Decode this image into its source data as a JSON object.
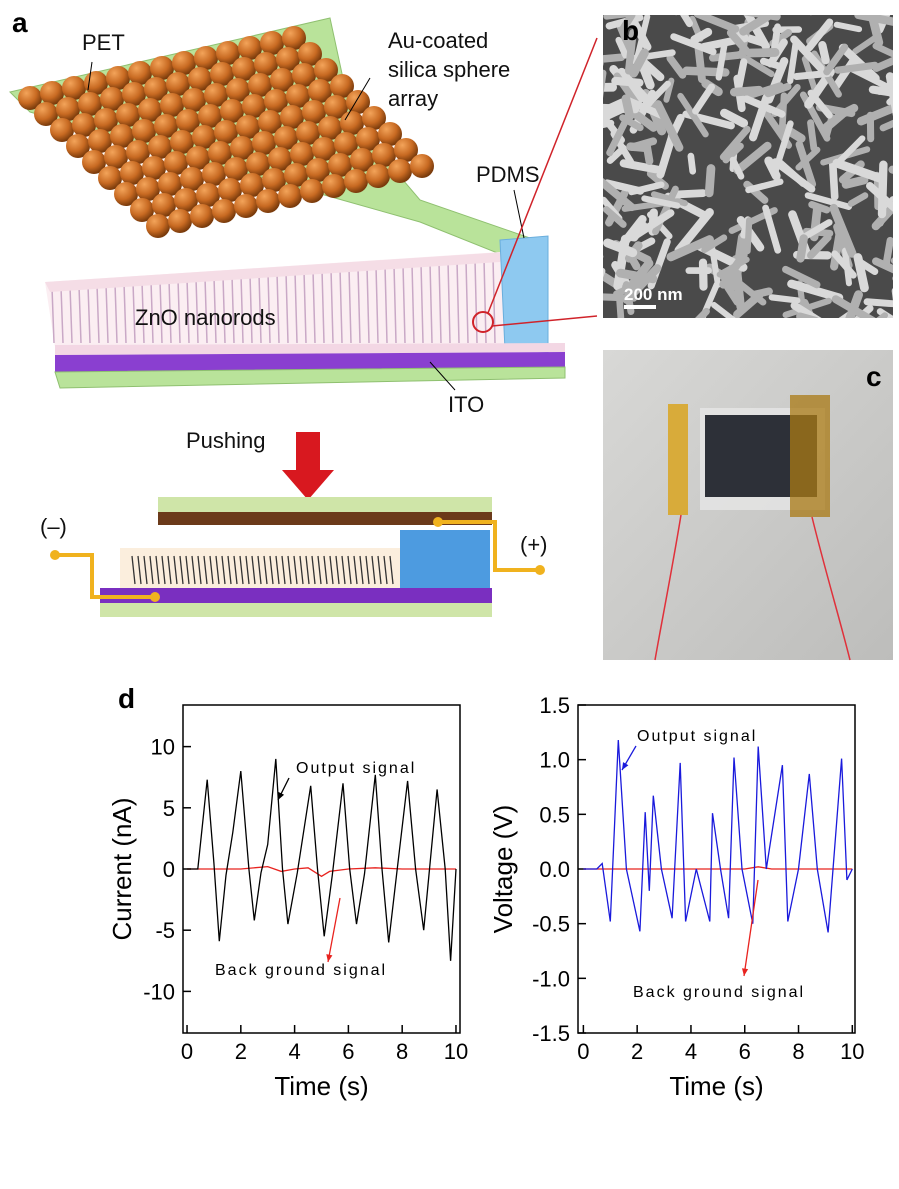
{
  "panel_a": {
    "label": "a",
    "pet": "PET",
    "spheres": [
      "Au-coated",
      "silica sphere",
      "array"
    ],
    "pdms": "PDMS",
    "nanorods": "ZnO nanorods",
    "ito": "ITO",
    "pushing": "Pushing",
    "minus": "(–)",
    "plus": "(+)"
  },
  "panel_b": {
    "label": "b",
    "scale_bar": "200 nm"
  },
  "panel_c": {
    "label": "c"
  },
  "panel_d": {
    "label": "d"
  },
  "chart_data": [
    {
      "type": "line",
      "xlabel": "Time (s)",
      "ylabel": "Current (nA)",
      "xlim": [
        -0.15,
        10.15
      ],
      "ylim": [
        -13.4,
        13.4
      ],
      "xticks": [
        0,
        2,
        4,
        6,
        8,
        10
      ],
      "yticks": [
        -10,
        -5,
        0,
        5,
        10
      ],
      "series": [
        {
          "name": "Output signal",
          "color": "#000000",
          "x": [
            0,
            0.4,
            0.75,
            1.0,
            1.2,
            1.45,
            1.7,
            2.0,
            2.3,
            2.5,
            2.75,
            3.0,
            3.3,
            3.55,
            3.75,
            4.1,
            4.6,
            4.85,
            5.1,
            5.4,
            5.8,
            6.05,
            6.3,
            6.6,
            7.0,
            7.25,
            7.5,
            7.8,
            8.2,
            8.5,
            8.8,
            9.3,
            9.6,
            9.8,
            10
          ],
          "values": [
            0,
            0,
            7.3,
            0.5,
            -5.9,
            -0.5,
            3,
            8.0,
            0,
            -4.2,
            -0.3,
            2,
            9.0,
            0,
            -4.5,
            -0.3,
            6.8,
            0,
            -5.5,
            -0.5,
            7.0,
            0,
            -4.5,
            -0.4,
            7.7,
            0,
            -6.0,
            -0.3,
            7.2,
            0,
            -5.0,
            6.5,
            0,
            -7.5,
            0
          ]
        },
        {
          "name": "Back ground signal",
          "color": "#e8231f",
          "x": [
            0,
            1,
            2,
            3,
            3.5,
            4,
            4.5,
            5,
            5.3,
            6,
            7,
            8,
            9,
            10
          ],
          "values": [
            0,
            0,
            0,
            0.2,
            -0.2,
            0,
            0.1,
            -0.6,
            -0.2,
            0,
            0.1,
            0,
            0,
            0
          ]
        }
      ]
    },
    {
      "type": "line",
      "xlabel": "Time (s)",
      "ylabel": "Voltage (V)",
      "xlim": [
        -0.2,
        10.1
      ],
      "ylim": [
        -1.5,
        1.5
      ],
      "xticks": [
        0,
        2,
        4,
        6,
        8,
        10
      ],
      "yticks": [
        -1.5,
        {
          "value": -1,
          "label": "-1.0"
        },
        -0.5,
        {
          "value": 0,
          "label": "0.0"
        },
        0.5,
        {
          "value": 1,
          "label": "1.0"
        },
        1.5
      ],
      "series": [
        {
          "name": "Output signal",
          "color": "#1a1adc",
          "x": [
            0,
            0.5,
            0.7,
            1.0,
            1.3,
            1.6,
            2.1,
            2.3,
            2.45,
            2.6,
            2.9,
            3.3,
            3.6,
            3.8,
            4.2,
            4.7,
            4.8,
            5.1,
            5.4,
            5.6,
            5.9,
            6.3,
            6.5,
            6.8,
            7.4,
            7.6,
            8.0,
            8.4,
            8.7,
            9.1,
            9.6,
            9.8,
            10
          ],
          "values": [
            0,
            0,
            0.05,
            -0.48,
            1.18,
            0,
            -0.57,
            0.52,
            -0.2,
            0.67,
            0,
            -0.45,
            0.97,
            -0.48,
            0,
            -0.48,
            0.51,
            0,
            -0.45,
            1.02,
            0,
            -0.5,
            1.12,
            0,
            0.95,
            -0.48,
            0,
            0.87,
            0,
            -0.58,
            1.01,
            -0.1,
            0
          ]
        },
        {
          "name": "Back ground signal",
          "color": "#e8231f",
          "x": [
            0,
            1,
            2,
            3,
            4,
            5,
            6,
            6.5,
            7,
            8,
            9,
            10
          ],
          "values": [
            0,
            0,
            0,
            0,
            0,
            0,
            0,
            0.02,
            0,
            0,
            0,
            0
          ]
        }
      ]
    }
  ]
}
